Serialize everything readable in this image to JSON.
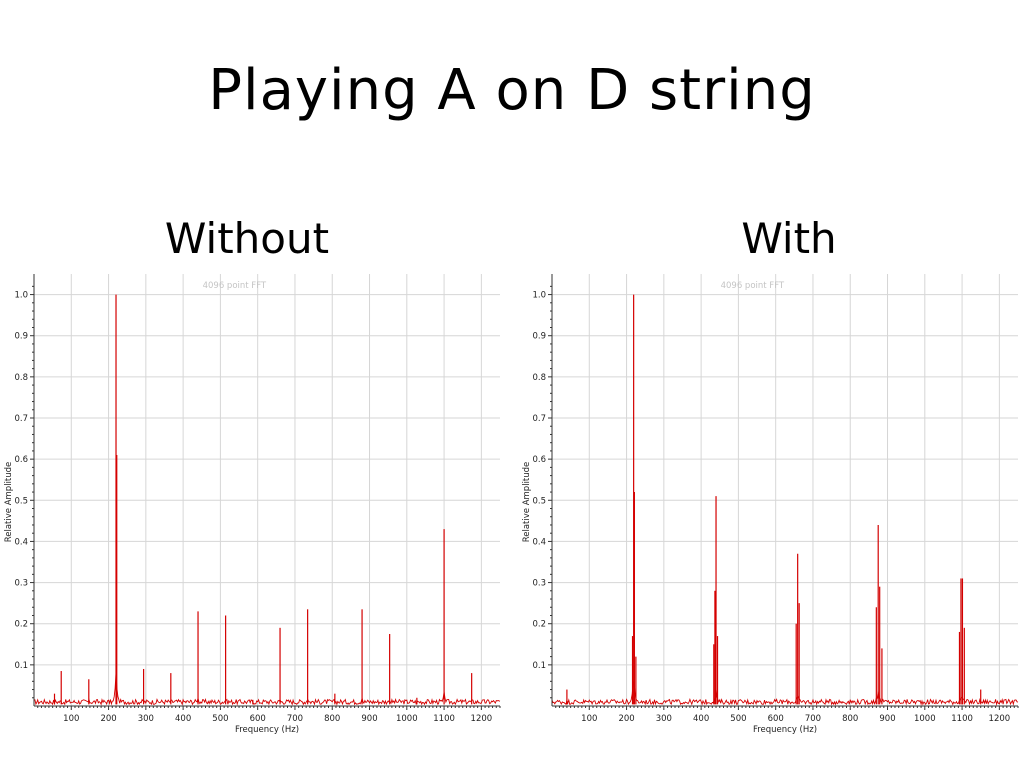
{
  "slide": {
    "title": "Playing A on D string"
  },
  "chart_data": [
    {
      "type": "line",
      "panel_title": "Without",
      "subtitle": "4096 point FFT",
      "xlabel": "Frequency (Hz)",
      "ylabel": "Relative Amplitude",
      "xlim": [
        0,
        1250
      ],
      "ylim": [
        0,
        1.05
      ],
      "x_ticks": [
        100,
        200,
        300,
        400,
        500,
        600,
        700,
        800,
        900,
        1000,
        1100,
        1200
      ],
      "y_ticks": [
        0.1,
        0.2,
        0.3,
        0.4,
        0.5,
        0.6,
        0.7,
        0.8,
        0.9,
        1.0
      ],
      "grid": true,
      "color": "#d40000",
      "peaks": [
        {
          "x": 55,
          "y": 0.03
        },
        {
          "x": 73,
          "y": 0.085
        },
        {
          "x": 147,
          "y": 0.065
        },
        {
          "x": 220,
          "y": 1.0
        },
        {
          "x": 222,
          "y": 0.61
        },
        {
          "x": 294,
          "y": 0.09
        },
        {
          "x": 367,
          "y": 0.08
        },
        {
          "x": 440,
          "y": 0.23
        },
        {
          "x": 514,
          "y": 0.22
        },
        {
          "x": 587,
          "y": 0.015
        },
        {
          "x": 660,
          "y": 0.19
        },
        {
          "x": 734,
          "y": 0.235
        },
        {
          "x": 807,
          "y": 0.03
        },
        {
          "x": 880,
          "y": 0.235
        },
        {
          "x": 954,
          "y": 0.175
        },
        {
          "x": 1027,
          "y": 0.02
        },
        {
          "x": 1100,
          "y": 0.43
        },
        {
          "x": 1174,
          "y": 0.08
        }
      ]
    },
    {
      "type": "line",
      "panel_title": "With",
      "subtitle": "4096 point FFT",
      "xlabel": "Frequency (Hz)",
      "ylabel": "Relative Amplitude",
      "xlim": [
        0,
        1250
      ],
      "ylim": [
        0,
        1.05
      ],
      "x_ticks": [
        100,
        200,
        300,
        400,
        500,
        600,
        700,
        800,
        900,
        1000,
        1100,
        1200
      ],
      "y_ticks": [
        0.1,
        0.2,
        0.3,
        0.4,
        0.5,
        0.6,
        0.7,
        0.8,
        0.9,
        1.0
      ],
      "grid": true,
      "color": "#d40000",
      "peaks": [
        {
          "x": 40,
          "y": 0.04
        },
        {
          "x": 216,
          "y": 0.17
        },
        {
          "x": 219,
          "y": 1.0
        },
        {
          "x": 221,
          "y": 0.52
        },
        {
          "x": 225,
          "y": 0.12
        },
        {
          "x": 434,
          "y": 0.15
        },
        {
          "x": 437,
          "y": 0.28
        },
        {
          "x": 440,
          "y": 0.51
        },
        {
          "x": 444,
          "y": 0.17
        },
        {
          "x": 655,
          "y": 0.2
        },
        {
          "x": 659,
          "y": 0.37
        },
        {
          "x": 663,
          "y": 0.25
        },
        {
          "x": 870,
          "y": 0.24
        },
        {
          "x": 875,
          "y": 0.44
        },
        {
          "x": 879,
          "y": 0.29
        },
        {
          "x": 885,
          "y": 0.14
        },
        {
          "x": 1093,
          "y": 0.18
        },
        {
          "x": 1097,
          "y": 0.31
        },
        {
          "x": 1101,
          "y": 0.31
        },
        {
          "x": 1106,
          "y": 0.19
        },
        {
          "x": 1150,
          "y": 0.04
        }
      ]
    }
  ]
}
